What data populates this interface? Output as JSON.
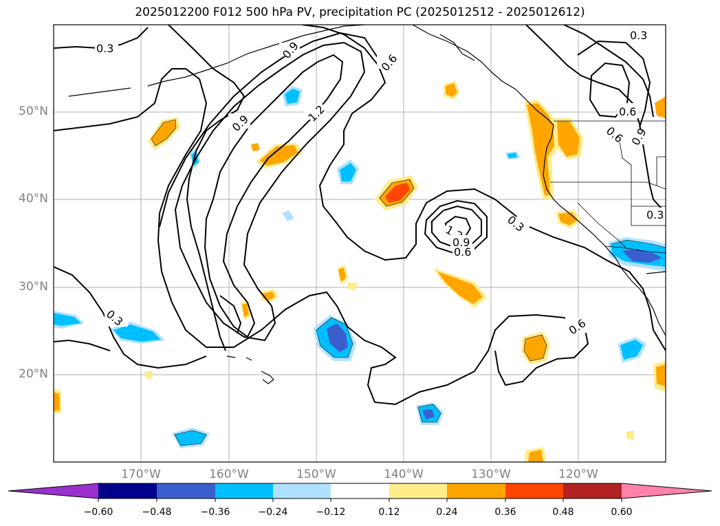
{
  "title": "2025012200 F012 500 hPa PV, precipitation PC (2025012512 - 2025012612)",
  "lat_labels": [
    "50°N",
    "40°N",
    "30°N",
    "20°N"
  ],
  "lon_labels": [
    "170°W",
    "160°W",
    "150°W",
    "140°W",
    "130°W",
    "120°W"
  ],
  "contour_labels": [
    "0.3",
    "0.6",
    "0.9",
    "1.2",
    "0.3",
    "0.9",
    "1.2",
    "0.6",
    "0.3",
    "0.9",
    "0.6",
    "0.9",
    "0.6",
    "0.3",
    "0.6",
    "0.3"
  ],
  "colorbar": {
    "tick_labels": [
      "−0.60",
      "−0.48",
      "−0.36",
      "−0.24",
      "−0.12",
      "0.12",
      "0.24",
      "0.36",
      "0.48",
      "0.60"
    ],
    "colors": [
      "#9932cc",
      "#00008b",
      "#3a5fcd",
      "#00bfff",
      "#b0e2ff",
      "#ffffff",
      "#ffec8b",
      "#ffa500",
      "#ff4500",
      "#b22222",
      "#ff82ab"
    ]
  }
}
